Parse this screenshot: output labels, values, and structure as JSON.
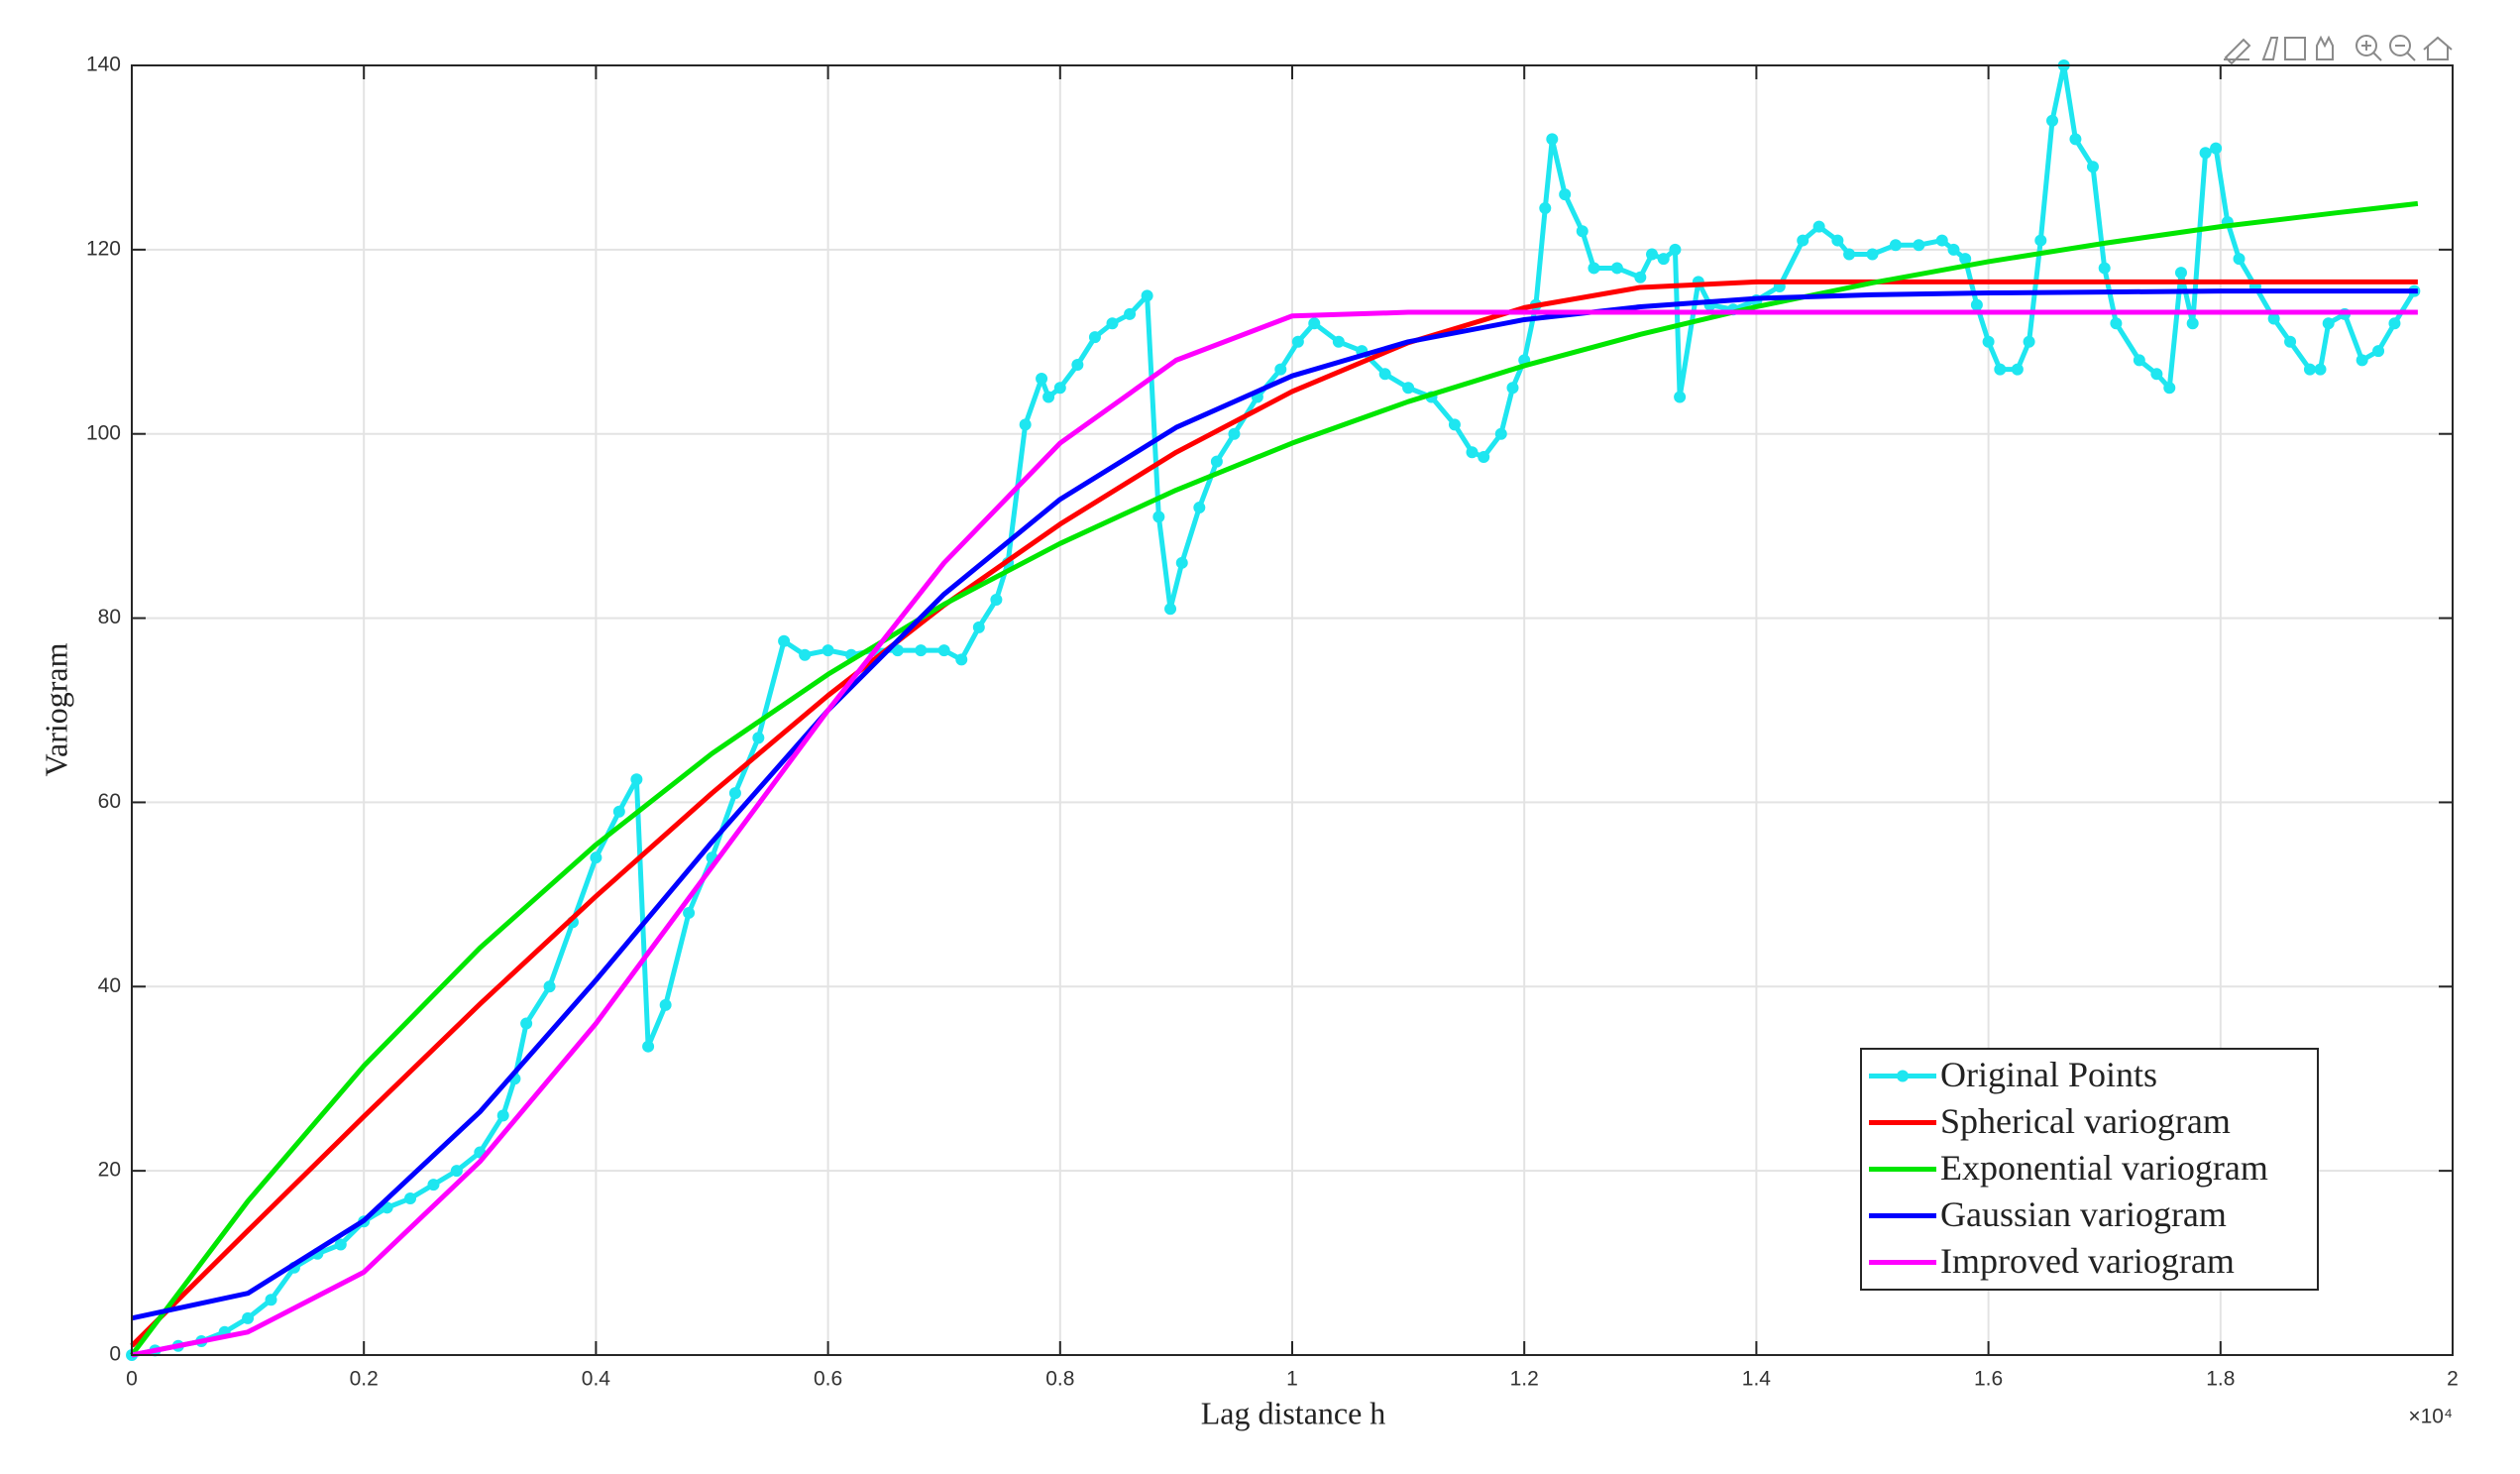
{
  "chart_data": {
    "type": "line",
    "xlabel": "Lag distance h",
    "ylabel": "Variogram",
    "x_exponent_label": "×10⁴",
    "xlim": [
      0,
      2
    ],
    "ylim": [
      0,
      140
    ],
    "xticks": [
      0,
      0.2,
      0.4,
      0.6,
      0.8,
      1,
      1.2,
      1.4,
      1.6,
      1.8,
      2
    ],
    "yticks": [
      0,
      20,
      40,
      60,
      80,
      100,
      120,
      140
    ],
    "grid": true,
    "legend": "lower right",
    "series": [
      {
        "name": "Original Points",
        "color": "#1ee6f0",
        "marker": true,
        "x": [
          0,
          0.02,
          0.04,
          0.06,
          0.08,
          0.1,
          0.12,
          0.14,
          0.16,
          0.18,
          0.2,
          0.22,
          0.24,
          0.26,
          0.28,
          0.3,
          0.32,
          0.33,
          0.34,
          0.36,
          0.38,
          0.4,
          0.42,
          0.435,
          0.445,
          0.46,
          0.48,
          0.5,
          0.52,
          0.54,
          0.562,
          0.58,
          0.6,
          0.62,
          0.64,
          0.66,
          0.68,
          0.7,
          0.715,
          0.73,
          0.745,
          0.755,
          0.77,
          0.784,
          0.79,
          0.8,
          0.815,
          0.83,
          0.845,
          0.86,
          0.875,
          0.885,
          0.895,
          0.905,
          0.92,
          0.935,
          0.95,
          0.97,
          0.99,
          1.005,
          1.019,
          1.04,
          1.06,
          1.08,
          1.1,
          1.12,
          1.14,
          1.155,
          1.165,
          1.18,
          1.19,
          1.2,
          1.21,
          1.218,
          1.224,
          1.235,
          1.25,
          1.26,
          1.28,
          1.3,
          1.31,
          1.32,
          1.33,
          1.334,
          1.35,
          1.36,
          1.38,
          1.4,
          1.42,
          1.44,
          1.454,
          1.47,
          1.48,
          1.5,
          1.52,
          1.54,
          1.56,
          1.57,
          1.58,
          1.59,
          1.6,
          1.61,
          1.625,
          1.635,
          1.645,
          1.655,
          1.665,
          1.675,
          1.69,
          1.7,
          1.71,
          1.73,
          1.745,
          1.756,
          1.766,
          1.776,
          1.787,
          1.796,
          1.806,
          1.816,
          1.83,
          1.846,
          1.86,
          1.877,
          1.886,
          1.893,
          1.907,
          1.922,
          1.936,
          1.95,
          1.967
        ],
        "values": [
          0,
          0.5,
          1,
          1.5,
          2.5,
          4,
          6,
          9.5,
          11,
          12,
          14.5,
          16,
          17,
          18.5,
          20,
          22,
          26,
          30,
          36,
          40,
          47,
          54,
          59,
          62.5,
          33.5,
          38,
          48,
          54,
          61,
          67,
          77.5,
          76,
          76.5,
          76,
          76.5,
          76.5,
          76.5,
          76.5,
          75.5,
          79,
          82,
          86,
          101,
          106,
          104,
          105,
          107.5,
          110.5,
          112,
          113,
          115,
          91,
          81,
          86,
          92,
          97,
          100,
          104,
          107,
          110,
          112,
          110,
          109,
          106.5,
          105,
          104,
          101,
          98,
          97.5,
          100,
          105,
          108,
          114,
          124.5,
          132,
          126,
          122,
          118,
          118,
          117,
          119.5,
          119,
          120,
          104,
          116.5,
          114,
          113.5,
          114.5,
          116,
          121,
          122.5,
          121,
          119.5,
          119.5,
          120.5,
          120.5,
          121,
          120,
          119,
          114,
          110,
          107,
          107,
          110,
          121,
          134,
          140,
          132,
          129,
          118,
          112,
          108,
          106.5,
          105,
          117.5,
          112,
          130.5,
          131,
          123,
          119,
          116,
          112.5,
          110,
          107,
          107,
          112,
          113,
          108,
          109,
          112,
          115.5
        ]
      },
      {
        "name": "Spherical variogram",
        "color": "#ff0000",
        "marker": false,
        "x": [
          0,
          0.1,
          0.2,
          0.3,
          0.4,
          0.5,
          0.6,
          0.7,
          0.8,
          0.9,
          1,
          1.1,
          1.2,
          1.3,
          1.4,
          1.5,
          1.6,
          1.7,
          1.8,
          1.9,
          1.97
        ],
        "values": [
          1,
          13.5,
          25.9,
          38.1,
          49.8,
          61.0,
          71.6,
          81.4,
          90.2,
          98.0,
          104.6,
          109.9,
          113.7,
          115.9,
          116.5,
          116.5,
          116.5,
          116.5,
          116.5,
          116.5,
          116.5
        ]
      },
      {
        "name": "Exponential variogram",
        "color": "#00e600",
        "marker": false,
        "x": [
          0,
          0.1,
          0.2,
          0.3,
          0.4,
          0.5,
          0.6,
          0.7,
          0.8,
          0.9,
          1,
          1.1,
          1.2,
          1.3,
          1.4,
          1.5,
          1.6,
          1.7,
          1.8,
          1.9,
          1.97
        ],
        "values": [
          0,
          16.7,
          31.4,
          44.2,
          55.4,
          65.3,
          73.9,
          81.5,
          88.1,
          93.9,
          99.0,
          103.5,
          107.4,
          110.8,
          113.8,
          116.4,
          118.7,
          120.7,
          122.5,
          124.0,
          125.0
        ]
      },
      {
        "name": "Gaussian variogram",
        "color": "#0000ff",
        "marker": false,
        "x": [
          0,
          0.1,
          0.2,
          0.3,
          0.4,
          0.5,
          0.6,
          0.7,
          0.8,
          0.9,
          1,
          1.1,
          1.2,
          1.3,
          1.4,
          1.5,
          1.6,
          1.7,
          1.8,
          1.9,
          1.97
        ],
        "values": [
          4,
          6.7,
          14.6,
          26.4,
          40.7,
          55.7,
          70.0,
          82.6,
          92.9,
          100.7,
          106.3,
          110.0,
          112.4,
          113.8,
          114.7,
          115.1,
          115.3,
          115.4,
          115.5,
          115.5,
          115.5
        ]
      },
      {
        "name": "Improved variogram",
        "color": "#ff00ff",
        "marker": false,
        "x": [
          0,
          0.1,
          0.2,
          0.3,
          0.4,
          0.5,
          0.6,
          0.7,
          0.8,
          0.9,
          1,
          1.1,
          1.2,
          1.3,
          1.4,
          1.5,
          1.6,
          1.7,
          1.8,
          1.9,
          1.97
        ],
        "values": [
          0,
          2.5,
          9,
          21,
          36,
          53,
          70,
          86,
          99,
          108,
          112.8,
          113.2,
          113.2,
          113.2,
          113.2,
          113.2,
          113.2,
          113.2,
          113.2,
          113.2,
          113.2
        ]
      }
    ]
  }
}
